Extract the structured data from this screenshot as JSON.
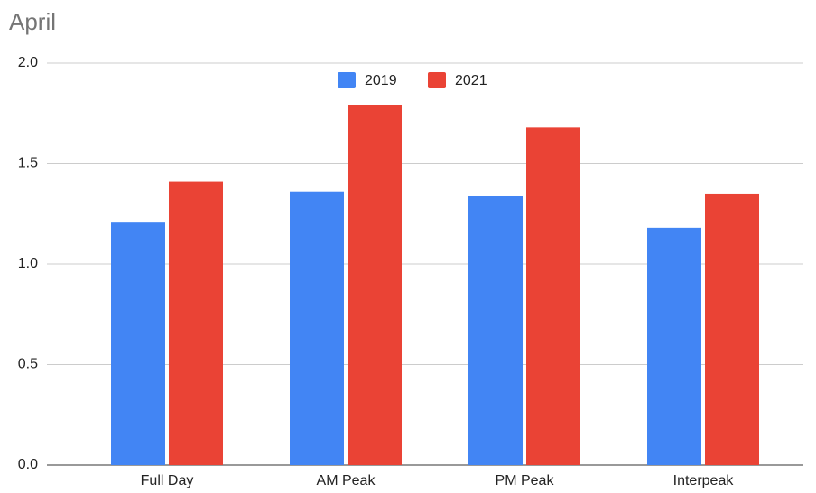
{
  "chart_data": {
    "type": "bar",
    "title": "April",
    "categories": [
      "Full Day",
      "AM Peak",
      "PM Peak",
      "Interpeak"
    ],
    "series": [
      {
        "name": "2019",
        "color": "#4285f4",
        "values": [
          1.21,
          1.36,
          1.34,
          1.18
        ]
      },
      {
        "name": "2021",
        "color": "#ea4335",
        "values": [
          1.41,
          1.79,
          1.68,
          1.35
        ]
      }
    ],
    "ylim": [
      0,
      2
    ],
    "yticks": [
      {
        "value": 0,
        "label": "0.0"
      },
      0.5,
      {
        "value": 1,
        "label": "1.0"
      },
      1.5,
      {
        "value": 2,
        "label": "2.0"
      }
    ],
    "grid": true,
    "legend": "top"
  }
}
